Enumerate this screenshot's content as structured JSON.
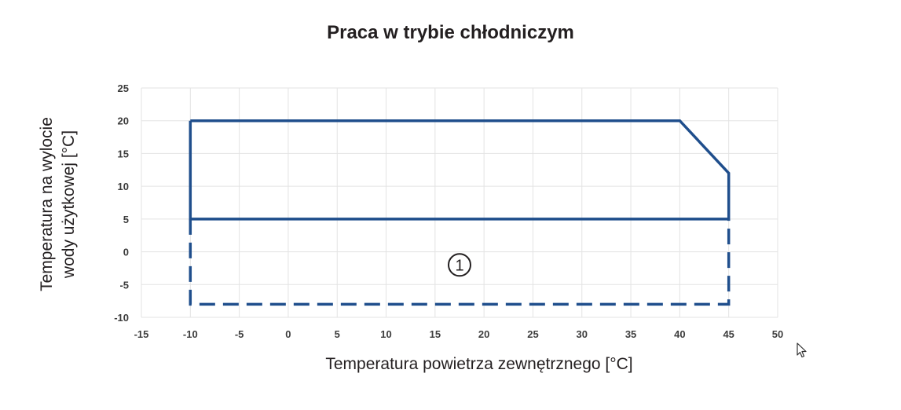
{
  "chart_data": {
    "type": "line",
    "title": "Praca w trybie chłodniczym",
    "xlabel": "Temperatura powietrza zewnętrznego [°C]",
    "ylabel_lines": [
      "Temperatura na wylocie",
      "wody użytkowej [°C]"
    ],
    "xlim": [
      -15,
      50
    ],
    "ylim": [
      -10,
      25
    ],
    "xticks": [
      -15,
      -10,
      -5,
      0,
      5,
      10,
      15,
      20,
      25,
      30,
      35,
      40,
      45,
      50
    ],
    "yticks": [
      -10,
      -5,
      0,
      5,
      10,
      15,
      20,
      25
    ],
    "grid": true,
    "series": [
      {
        "style": "solid",
        "x": [
          -10,
          40,
          45,
          45,
          -10,
          -10
        ],
        "y": [
          20,
          20,
          12,
          5,
          5,
          20
        ]
      },
      {
        "style": "dashed",
        "x": [
          -10,
          -10,
          45,
          45
        ],
        "y": [
          5,
          -8,
          -8,
          5
        ]
      }
    ],
    "annotations": [
      {
        "text": "1",
        "x": 17.5,
        "y": -2
      }
    ],
    "colors": {
      "line": "#1f4e8c",
      "grid": "#e3e3e3",
      "text": "#3d3d3d"
    }
  }
}
